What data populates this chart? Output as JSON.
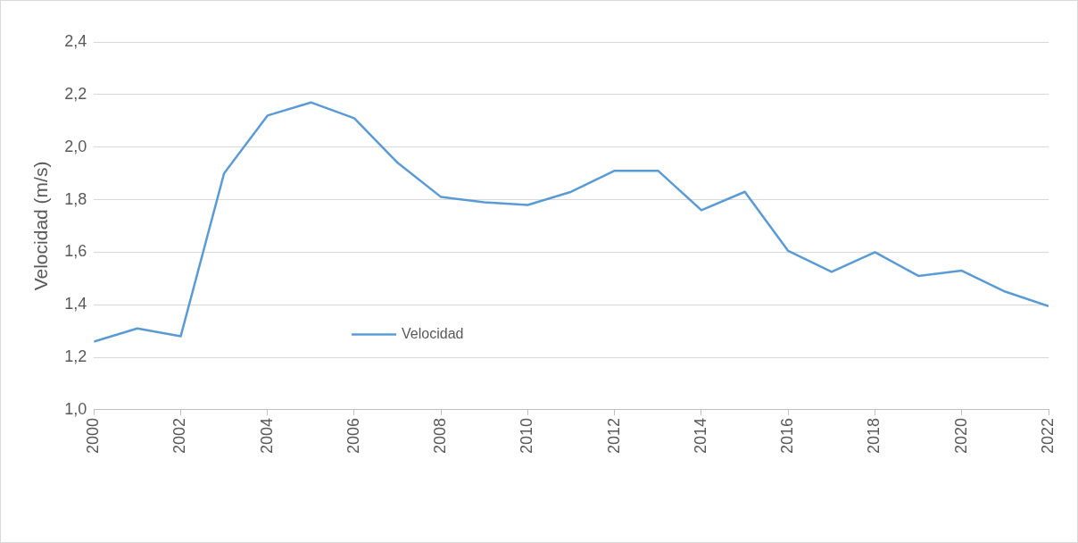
{
  "chart_data": {
    "type": "line",
    "ylabel": "Velocidad (m/s)",
    "x": [
      2000,
      2001,
      2002,
      2003,
      2004,
      2005,
      2006,
      2007,
      2008,
      2009,
      2010,
      2011,
      2012,
      2013,
      2014,
      2015,
      2016,
      2017,
      2018,
      2019,
      2020,
      2021,
      2022
    ],
    "series": [
      {
        "name": "Velocidad",
        "color": "#5b9bd5",
        "values": [
          1.26,
          1.31,
          1.28,
          1.9,
          2.12,
          2.17,
          2.11,
          1.94,
          1.81,
          1.79,
          1.78,
          1.83,
          1.91,
          1.91,
          1.76,
          1.83,
          1.605,
          1.525,
          1.6,
          1.51,
          1.53,
          1.45,
          1.395
        ]
      }
    ],
    "xlim": [
      2000,
      2022
    ],
    "xticks": [
      2000,
      2002,
      2004,
      2006,
      2008,
      2010,
      2012,
      2014,
      2016,
      2018,
      2020,
      2022
    ],
    "ylim": [
      1.0,
      2.4
    ],
    "yticks": [
      {
        "value": 1.0,
        "label": "1,0"
      },
      {
        "value": 1.2,
        "label": "1,2"
      },
      {
        "value": 1.4,
        "label": "1,4"
      },
      {
        "value": 1.6,
        "label": "1,6"
      },
      {
        "value": 1.8,
        "label": "1,8"
      },
      {
        "value": 2.0,
        "label": "2,0"
      },
      {
        "value": 2.2,
        "label": "2,2"
      },
      {
        "value": 2.4,
        "label": "2,4"
      }
    ],
    "grid": "y",
    "legend": "bottom left",
    "marker": "none",
    "line_style": "solid"
  }
}
